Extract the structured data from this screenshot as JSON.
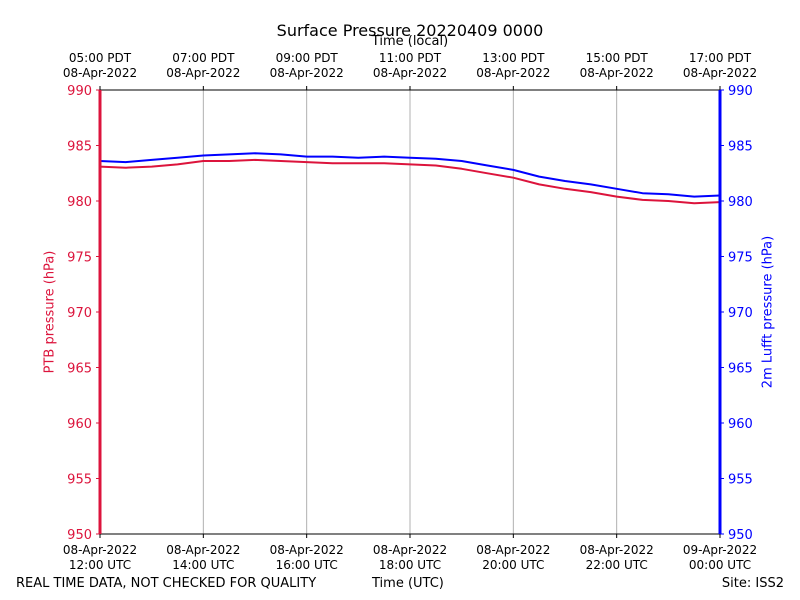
{
  "chart_data": {
    "type": "line",
    "title": "Surface Pressure 20220409 0000",
    "top_axis_label": "Time (local)",
    "xlabel": "Time (UTC)",
    "ylabel_left": "PTB pressure (hPa)",
    "ylabel_right": "2m Lufft pressure (hPa)",
    "ylim": [
      950,
      990
    ],
    "yticks": [
      950,
      955,
      960,
      965,
      970,
      975,
      980,
      985,
      990
    ],
    "xlim": [
      "2022-04-08T12:00Z",
      "2022-04-09T00:00Z"
    ],
    "grid": true,
    "bottom_ticks": [
      {
        "x": "2022-04-08T12:00Z",
        "line1": "08-Apr-2022",
        "line2": "12:00 UTC"
      },
      {
        "x": "2022-04-08T14:00Z",
        "line1": "08-Apr-2022",
        "line2": "14:00 UTC"
      },
      {
        "x": "2022-04-08T16:00Z",
        "line1": "08-Apr-2022",
        "line2": "16:00 UTC"
      },
      {
        "x": "2022-04-08T18:00Z",
        "line1": "08-Apr-2022",
        "line2": "18:00 UTC"
      },
      {
        "x": "2022-04-08T20:00Z",
        "line1": "08-Apr-2022",
        "line2": "20:00 UTC"
      },
      {
        "x": "2022-04-08T22:00Z",
        "line1": "08-Apr-2022",
        "line2": "22:00 UTC"
      },
      {
        "x": "2022-04-09T00:00Z",
        "line1": "09-Apr-2022",
        "line2": "00:00 UTC"
      }
    ],
    "top_ticks": [
      {
        "x": "2022-04-08T12:00Z",
        "line1": "05:00 PDT",
        "line2": "08-Apr-2022"
      },
      {
        "x": "2022-04-08T14:00Z",
        "line1": "07:00 PDT",
        "line2": "08-Apr-2022"
      },
      {
        "x": "2022-04-08T16:00Z",
        "line1": "09:00 PDT",
        "line2": "08-Apr-2022"
      },
      {
        "x": "2022-04-08T18:00Z",
        "line1": "11:00 PDT",
        "line2": "08-Apr-2022"
      },
      {
        "x": "2022-04-08T20:00Z",
        "line1": "13:00 PDT",
        "line2": "08-Apr-2022"
      },
      {
        "x": "2022-04-08T22:00Z",
        "line1": "15:00 PDT",
        "line2": "08-Apr-2022"
      },
      {
        "x": "2022-04-09T00:00Z",
        "line1": "17:00 PDT",
        "line2": "08-Apr-2022"
      }
    ],
    "series": [
      {
        "axis": "left",
        "color": "#dc143c",
        "points": [
          [
            "2022-04-08T12:00Z",
            983.1
          ],
          [
            "2022-04-08T12:30Z",
            983.0
          ],
          [
            "2022-04-08T13:00Z",
            983.1
          ],
          [
            "2022-04-08T13:30Z",
            983.3
          ],
          [
            "2022-04-08T14:00Z",
            983.6
          ],
          [
            "2022-04-08T14:30Z",
            983.6
          ],
          [
            "2022-04-08T15:00Z",
            983.7
          ],
          [
            "2022-04-08T15:30Z",
            983.6
          ],
          [
            "2022-04-08T16:00Z",
            983.5
          ],
          [
            "2022-04-08T16:30Z",
            983.4
          ],
          [
            "2022-04-08T17:00Z",
            983.4
          ],
          [
            "2022-04-08T17:30Z",
            983.4
          ],
          [
            "2022-04-08T18:00Z",
            983.3
          ],
          [
            "2022-04-08T18:30Z",
            983.2
          ],
          [
            "2022-04-08T19:00Z",
            982.9
          ],
          [
            "2022-04-08T19:30Z",
            982.5
          ],
          [
            "2022-04-08T20:00Z",
            982.1
          ],
          [
            "2022-04-08T20:30Z",
            981.5
          ],
          [
            "2022-04-08T21:00Z",
            981.1
          ],
          [
            "2022-04-08T21:30Z",
            980.8
          ],
          [
            "2022-04-08T22:00Z",
            980.4
          ],
          [
            "2022-04-08T22:30Z",
            980.1
          ],
          [
            "2022-04-08T23:00Z",
            980.0
          ],
          [
            "2022-04-08T23:30Z",
            979.8
          ],
          [
            "2022-04-09T00:00Z",
            979.9
          ]
        ]
      },
      {
        "axis": "right",
        "color": "#0000ff",
        "points": [
          [
            "2022-04-08T12:00Z",
            983.6
          ],
          [
            "2022-04-08T12:30Z",
            983.5
          ],
          [
            "2022-04-08T13:00Z",
            983.7
          ],
          [
            "2022-04-08T13:30Z",
            983.9
          ],
          [
            "2022-04-08T14:00Z",
            984.1
          ],
          [
            "2022-04-08T14:30Z",
            984.2
          ],
          [
            "2022-04-08T15:00Z",
            984.3
          ],
          [
            "2022-04-08T15:30Z",
            984.2
          ],
          [
            "2022-04-08T16:00Z",
            984.0
          ],
          [
            "2022-04-08T16:30Z",
            984.0
          ],
          [
            "2022-04-08T17:00Z",
            983.9
          ],
          [
            "2022-04-08T17:30Z",
            984.0
          ],
          [
            "2022-04-08T18:00Z",
            983.9
          ],
          [
            "2022-04-08T18:30Z",
            983.8
          ],
          [
            "2022-04-08T19:00Z",
            983.6
          ],
          [
            "2022-04-08T19:30Z",
            983.2
          ],
          [
            "2022-04-08T20:00Z",
            982.8
          ],
          [
            "2022-04-08T20:30Z",
            982.2
          ],
          [
            "2022-04-08T21:00Z",
            981.8
          ],
          [
            "2022-04-08T21:30Z",
            981.5
          ],
          [
            "2022-04-08T22:00Z",
            981.1
          ],
          [
            "2022-04-08T22:30Z",
            980.7
          ],
          [
            "2022-04-08T23:00Z",
            980.6
          ],
          [
            "2022-04-08T23:30Z",
            980.4
          ],
          [
            "2022-04-09T00:00Z",
            980.5
          ]
        ]
      }
    ]
  },
  "footer": {
    "left": "REAL TIME DATA, NOT CHECKED FOR QUALITY",
    "right": "Site: ISS2"
  }
}
